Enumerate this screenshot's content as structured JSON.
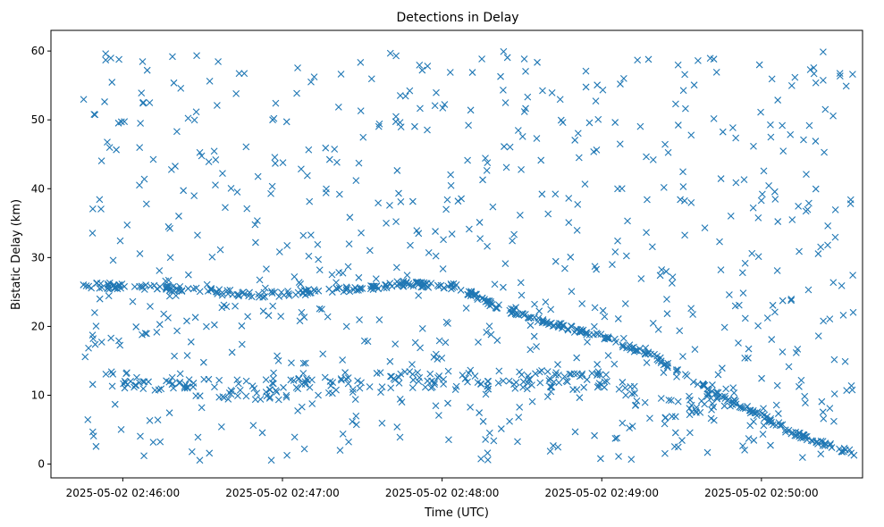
{
  "chart_data": {
    "type": "scatter",
    "title": "Detections in Delay",
    "xlabel": "Time (UTC)",
    "ylabel": "Bistatic Delay (km)",
    "marker": "x",
    "color": "#1f77b4",
    "grid": false,
    "legend": "none",
    "xlim": [
      "2025-05-02T02:45:33",
      "2025-05-02T02:50:38"
    ],
    "ylim": [
      -2,
      63
    ],
    "x_ticks": [
      {
        "value": "2025-05-02T02:46:00",
        "label": "2025-05-02 02:46:00"
      },
      {
        "value": "2025-05-02T02:47:00",
        "label": "2025-05-02 02:47:00"
      },
      {
        "value": "2025-05-02T02:48:00",
        "label": "2025-05-02 02:48:00"
      },
      {
        "value": "2025-05-02T02:49:00",
        "label": "2025-05-02 02:49:00"
      },
      {
        "value": "2025-05-02T02:50:00",
        "label": "2025-05-02 02:50:00"
      }
    ],
    "y_ticks": [
      0,
      10,
      20,
      30,
      40,
      50,
      60
    ],
    "track": [
      [
        "2025-05-02T02:45:45",
        26.0
      ],
      [
        "2025-05-02T02:46:10",
        25.6
      ],
      [
        "2025-05-02T02:46:30",
        25.3
      ],
      [
        "2025-05-02T02:46:50",
        24.5
      ],
      [
        "2025-05-02T02:47:30",
        25.5
      ],
      [
        "2025-05-02T02:47:45",
        26.2
      ],
      [
        "2025-05-02T02:48:05",
        25.8
      ],
      [
        "2025-05-02T02:48:20",
        23.0
      ],
      [
        "2025-05-02T02:48:40",
        20.5
      ],
      [
        "2025-05-02T02:49:00",
        18.5
      ],
      [
        "2025-05-02T02:49:20",
        15.5
      ],
      [
        "2025-05-02T02:49:40",
        11.0
      ],
      [
        "2025-05-02T02:50:00",
        7.0
      ],
      [
        "2025-05-02T02:50:15",
        4.0
      ],
      [
        "2025-05-02T02:50:35",
        1.5
      ]
    ],
    "band_10km": [
      [
        "2025-05-02T02:45:55",
        12.0
      ],
      [
        "2025-05-02T02:46:20",
        11.8
      ],
      [
        "2025-05-02T02:46:40",
        10.5
      ],
      [
        "2025-05-02T02:47:15",
        11.5
      ],
      [
        "2025-05-02T02:47:50",
        12.0
      ],
      [
        "2025-05-02T02:48:30",
        12.5
      ],
      [
        "2025-05-02T02:49:00",
        12.0
      ],
      [
        "2025-05-02T02:49:25",
        8.0
      ],
      [
        "2025-05-02T02:49:50",
        10.0
      ]
    ],
    "clutter_count": 700,
    "clutter_delay_range": [
      0.5,
      60
    ]
  }
}
